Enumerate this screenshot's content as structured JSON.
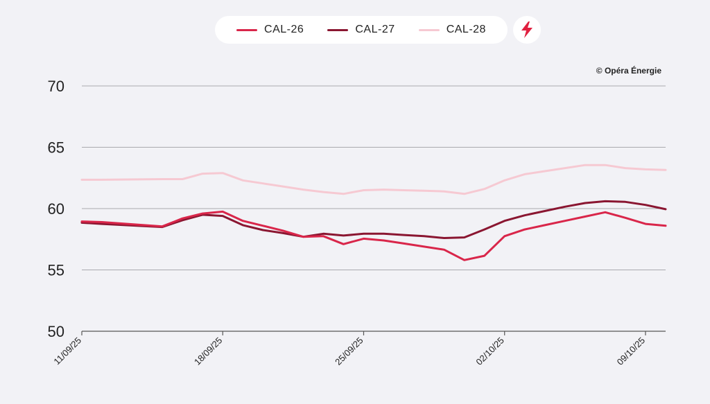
{
  "legend": {
    "items": [
      {
        "label": "CAL-26",
        "color": "#d9264a"
      },
      {
        "label": "CAL-27",
        "color": "#8a1631"
      },
      {
        "label": "CAL-28",
        "color": "#f6c9d2"
      }
    ],
    "action_icon": "lightning-bolt-icon"
  },
  "copyright": "© Opéra Énergie",
  "chart_data": {
    "type": "line",
    "title": "",
    "xlabel": "",
    "ylabel": "",
    "ylim": [
      50,
      70
    ],
    "yticks": [
      50,
      55,
      60,
      65,
      70
    ],
    "xlim": [
      0,
      29
    ],
    "xticks": [
      {
        "x": 0,
        "label": "11/09/25"
      },
      {
        "x": 7,
        "label": "18/09/25"
      },
      {
        "x": 14,
        "label": "25/09/25"
      },
      {
        "x": 21,
        "label": "02/10/25"
      },
      {
        "x": 28,
        "label": "09/10/25"
      }
    ],
    "grid": true,
    "series": [
      {
        "name": "CAL-28",
        "color": "#f6c9d2",
        "x": [
          0,
          1,
          4,
          5,
          6,
          7,
          8,
          9,
          10,
          11,
          12,
          13,
          14,
          15,
          16,
          17,
          18,
          19,
          20,
          21,
          22,
          23,
          24,
          25,
          26,
          27,
          28,
          29
        ],
        "values": [
          62.35,
          62.35,
          62.4,
          62.4,
          62.85,
          62.9,
          62.3,
          62.05,
          61.8,
          61.55,
          61.35,
          61.2,
          61.5,
          61.55,
          61.5,
          61.45,
          61.4,
          61.2,
          61.6,
          62.3,
          62.8,
          63.05,
          63.3,
          63.55,
          63.55,
          63.3,
          63.2,
          63.15
        ]
      },
      {
        "name": "CAL-27",
        "color": "#8a1631",
        "x": [
          0,
          1,
          4,
          5,
          6,
          7,
          8,
          9,
          10,
          11,
          12,
          13,
          14,
          15,
          16,
          17,
          18,
          19,
          20,
          21,
          22,
          23,
          24,
          25,
          26,
          27,
          28,
          29
        ],
        "values": [
          58.85,
          58.75,
          58.5,
          59.05,
          59.5,
          59.4,
          58.65,
          58.25,
          58.0,
          57.7,
          57.95,
          57.8,
          57.95,
          57.95,
          57.85,
          57.75,
          57.6,
          57.65,
          58.3,
          59.0,
          59.45,
          59.8,
          60.15,
          60.45,
          60.6,
          60.55,
          60.3,
          59.95
        ]
      },
      {
        "name": "CAL-26",
        "color": "#d9264a",
        "x": [
          0,
          1,
          4,
          5,
          6,
          7,
          8,
          9,
          10,
          11,
          12,
          13,
          14,
          15,
          16,
          17,
          18,
          19,
          20,
          21,
          22,
          23,
          24,
          25,
          26,
          27,
          28,
          29
        ],
        "values": [
          58.95,
          58.9,
          58.55,
          59.2,
          59.6,
          59.75,
          59.0,
          58.6,
          58.2,
          57.7,
          57.75,
          57.1,
          57.55,
          57.4,
          57.15,
          56.9,
          56.65,
          55.8,
          56.15,
          57.75,
          58.3,
          58.65,
          59.0,
          59.35,
          59.7,
          59.25,
          58.75,
          58.6
        ]
      }
    ]
  }
}
